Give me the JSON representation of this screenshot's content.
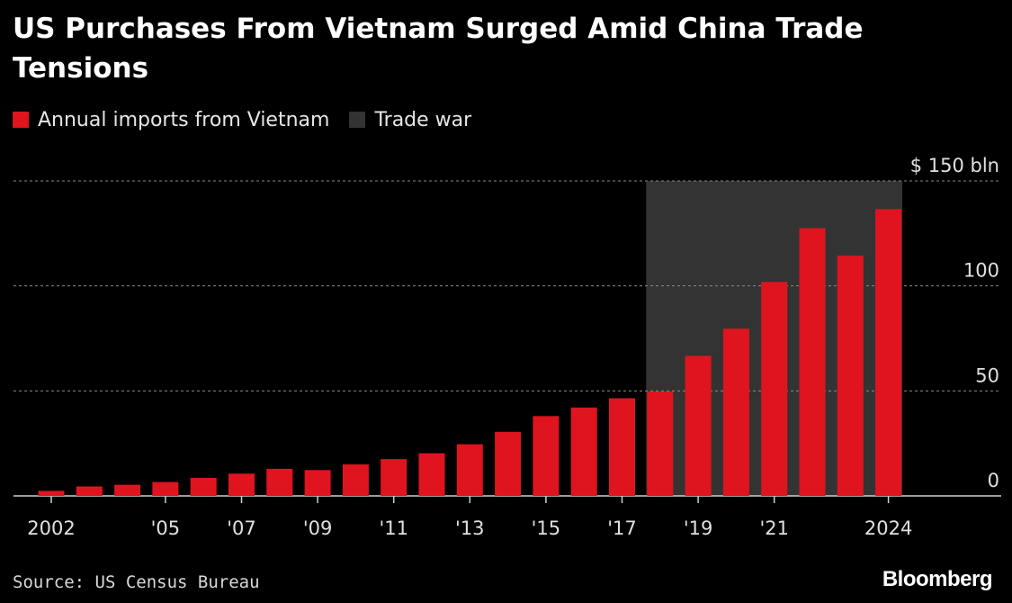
{
  "chart_data": {
    "type": "bar",
    "title": "US Purchases From Vietnam Surged Amid China Trade Tensions",
    "legend": [
      {
        "label": "Annual imports from Vietnam",
        "color": "#e0141e"
      },
      {
        "label": "Trade war",
        "color": "#333333"
      }
    ],
    "x": [
      2002,
      2003,
      2004,
      2005,
      2006,
      2007,
      2008,
      2009,
      2010,
      2011,
      2012,
      2013,
      2014,
      2015,
      2016,
      2017,
      2018,
      2019,
      2020,
      2021,
      2022,
      2023,
      2024
    ],
    "values": [
      2.4,
      4.5,
      5.3,
      6.6,
      8.6,
      10.6,
      12.9,
      12.3,
      15.0,
      17.5,
      20.3,
      24.6,
      30.5,
      38.0,
      42.1,
      46.5,
      49.7,
      66.7,
      79.6,
      101.9,
      127.5,
      114.4,
      136.6
    ],
    "x_tick_labels": [
      {
        "year": 2002,
        "label": "2002"
      },
      {
        "year": 2005,
        "label": "'05"
      },
      {
        "year": 2007,
        "label": "'07"
      },
      {
        "year": 2009,
        "label": "'09"
      },
      {
        "year": 2011,
        "label": "'11"
      },
      {
        "year": 2013,
        "label": "'13"
      },
      {
        "year": 2015,
        "label": "'15"
      },
      {
        "year": 2017,
        "label": "'17"
      },
      {
        "year": 2019,
        "label": "'19"
      },
      {
        "year": 2021,
        "label": "'21"
      },
      {
        "year": 2024,
        "label": "2024"
      }
    ],
    "y_ticks": [
      {
        "value": 150,
        "label": "$ 150 bln"
      },
      {
        "value": 100,
        "label": "100"
      },
      {
        "value": 50,
        "label": "50"
      },
      {
        "value": 0,
        "label": "0"
      }
    ],
    "ylim": [
      0,
      150
    ],
    "shaded_period": {
      "label": "Trade war",
      "start": 2018,
      "end": 2024
    },
    "bar_color": "#e0141e",
    "shade_color": "#333333",
    "gridlines": true,
    "legend_position": "top-left"
  },
  "footer": {
    "source": "Source: US Census Bureau",
    "brand": "Bloomberg"
  }
}
